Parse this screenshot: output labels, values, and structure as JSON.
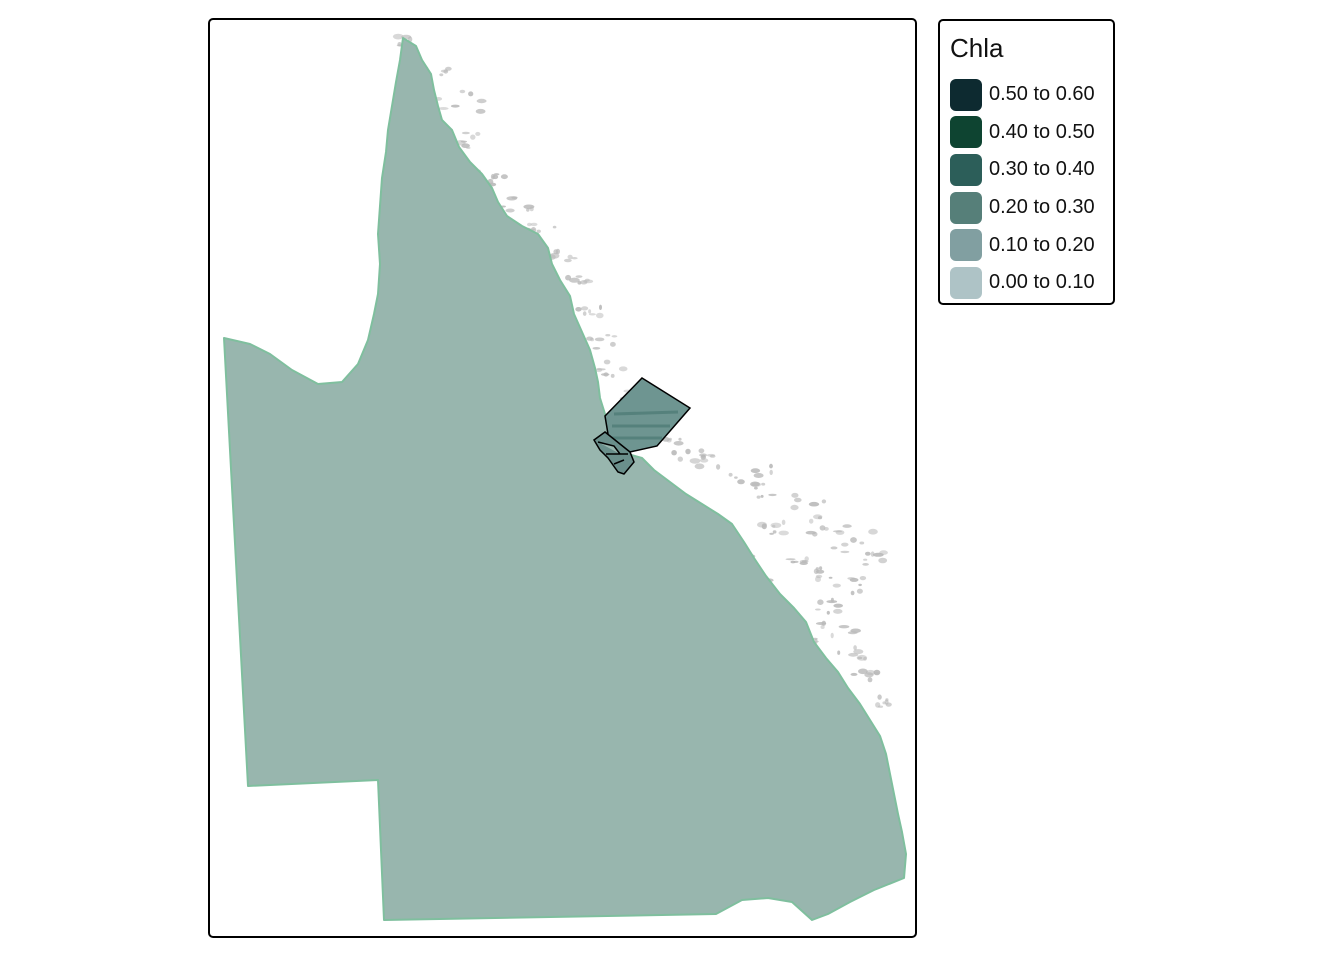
{
  "map": {
    "region_fill": "#98b6ae",
    "coast_outline_color": "#7fbf9e",
    "reef_color": "#b8b8b8",
    "study_area_fill": "#6e9591",
    "study_area_stroke": "#000000"
  },
  "legend": {
    "title": "Chla",
    "items": [
      {
        "label": "0.50 to 0.60",
        "color": "#0d2a30"
      },
      {
        "label": "0.40 to 0.50",
        "color": "#0e4431"
      },
      {
        "label": "0.30 to 0.40",
        "color": "#2c5e59"
      },
      {
        "label": "0.20 to 0.30",
        "color": "#567f79"
      },
      {
        "label": "0.10 to 0.20",
        "color": "#819fa1"
      },
      {
        "label": "0.00 to 0.10",
        "color": "#aec3c6"
      }
    ]
  }
}
